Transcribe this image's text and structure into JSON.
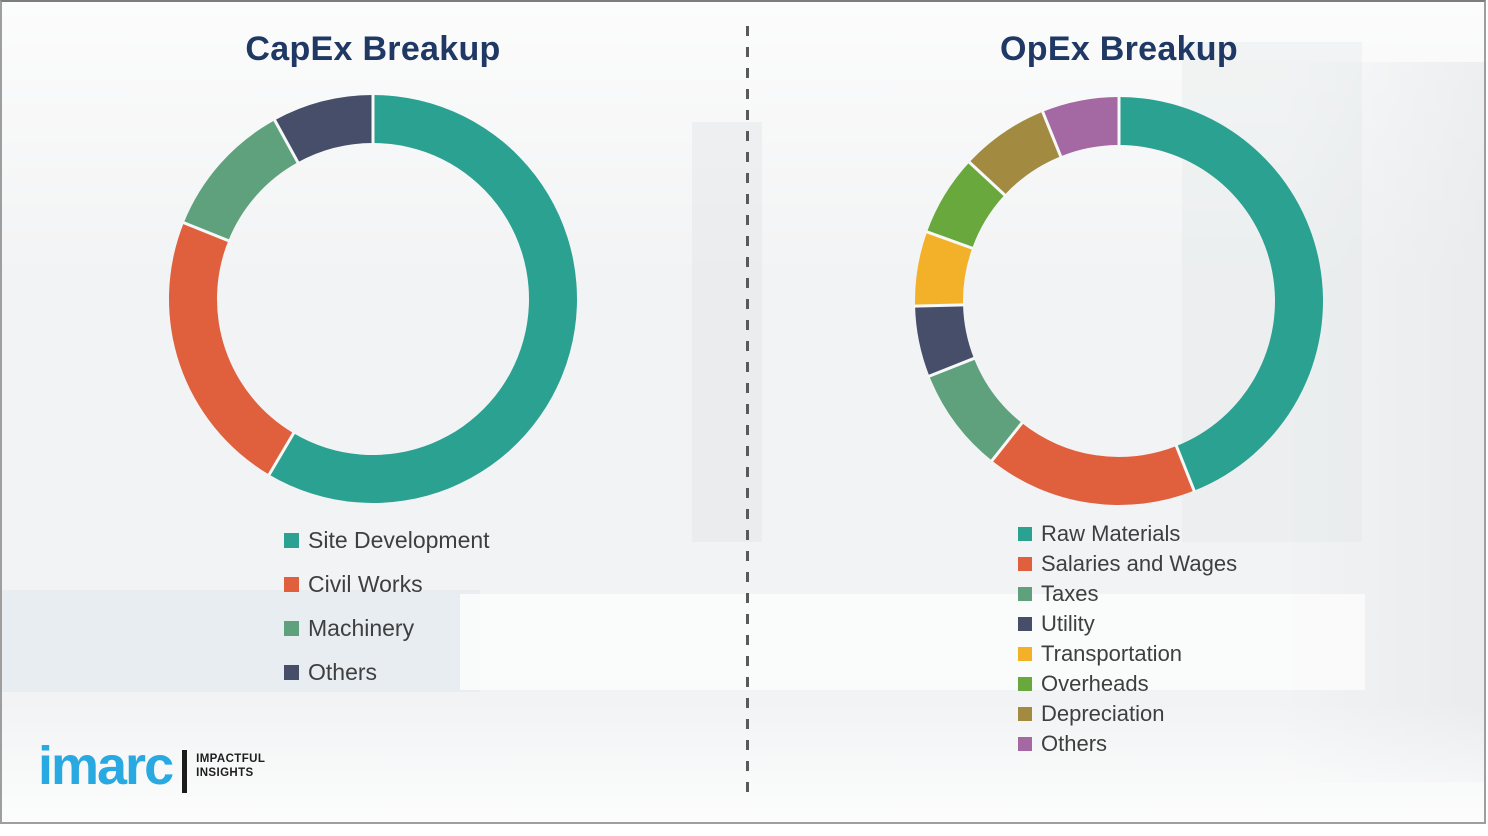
{
  "page": {
    "background_color": "#f2f3f4",
    "frame_border_color": "#9e9e9e",
    "divider_style": "vertical-dashed",
    "divider_color": "#595959"
  },
  "chart_data": [
    {
      "type": "pie",
      "subtype": "donut",
      "title": "CapEx Breakup",
      "labels": [
        "Site Development",
        "Civil Works",
        "Machinery",
        "Others"
      ],
      "values": [
        58.5,
        22.6,
        10.9,
        8.0
      ],
      "colors": [
        "#2aa191",
        "#e0603d",
        "#5fa17c",
        "#464e69"
      ],
      "start_angle_deg": 0,
      "direction": "clockwise",
      "legend_position": "below-left"
    },
    {
      "type": "pie",
      "subtype": "donut",
      "title": "OpEx Breakup",
      "labels": [
        "Raw Materials",
        "Salaries and Wages",
        "Taxes",
        "Utility",
        "Transportation",
        "Overheads",
        "Depreciation",
        "Others"
      ],
      "values": [
        44.0,
        16.7,
        8.3,
        5.6,
        5.9,
        6.4,
        7.0,
        6.1
      ],
      "colors": [
        "#2aa191",
        "#e0603d",
        "#5fa17c",
        "#464e69",
        "#f3b129",
        "#68a83d",
        "#a28b41",
        "#a468a2"
      ],
      "start_angle_deg": 0,
      "direction": "clockwise",
      "legend_position": "below-left"
    }
  ],
  "style": {
    "title_color": "#1f3864",
    "legend_text_color": "#3f3f3f"
  },
  "logo": {
    "brand": "imarc",
    "brand_color": "#29a9e1",
    "tagline_line1": "IMPACTFUL",
    "tagline_line2": "INSIGHTS"
  }
}
